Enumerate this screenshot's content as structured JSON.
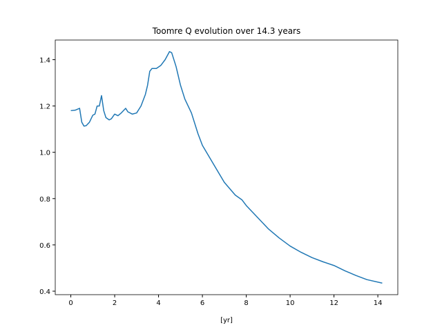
{
  "chart_data": {
    "type": "line",
    "title": "Toomre Q evolution over 14.3 years",
    "x_label": "[yr]",
    "x": [
      0,
      0.2,
      0.4,
      0.5,
      0.6,
      0.7,
      0.85,
      1.0,
      1.1,
      1.2,
      1.3,
      1.4,
      1.5,
      1.6,
      1.75,
      1.85,
      2.0,
      2.15,
      2.3,
      2.5,
      2.6,
      2.8,
      3.0,
      3.2,
      3.4,
      3.5,
      3.6,
      3.7,
      3.9,
      4.1,
      4.3,
      4.5,
      4.6,
      4.8,
      5.0,
      5.2,
      5.5,
      5.8,
      6.0,
      6.5,
      7.0,
      7.5,
      7.8,
      8.0,
      8.5,
      9.0,
      9.5,
      10.0,
      10.5,
      11.0,
      11.5,
      12.0,
      12.5,
      13.0,
      13.5,
      14.2
    ],
    "series": [
      {
        "color": "#1f77b4",
        "values": [
          1.18,
          1.182,
          1.19,
          1.13,
          1.113,
          1.115,
          1.13,
          1.16,
          1.165,
          1.2,
          1.2,
          1.245,
          1.18,
          1.15,
          1.14,
          1.145,
          1.165,
          1.158,
          1.17,
          1.19,
          1.175,
          1.165,
          1.17,
          1.2,
          1.25,
          1.29,
          1.35,
          1.362,
          1.362,
          1.375,
          1.4,
          1.435,
          1.43,
          1.37,
          1.29,
          1.23,
          1.17,
          1.08,
          1.03,
          0.95,
          0.87,
          0.815,
          0.795,
          0.77,
          0.72,
          0.67,
          0.63,
          0.595,
          0.568,
          0.545,
          0.527,
          0.511,
          0.488,
          0.468,
          0.45,
          0.435
        ]
      }
    ],
    "xlim": [
      -0.71,
      14.91
    ],
    "ylim": [
      0.385,
      1.485
    ],
    "xticks": [
      0,
      2,
      4,
      6,
      8,
      10,
      12,
      14
    ],
    "yticks": [
      0.4,
      0.6,
      0.8,
      {
        "value": 1.0,
        "label": "1.0"
      },
      1.2,
      1.4
    ]
  }
}
